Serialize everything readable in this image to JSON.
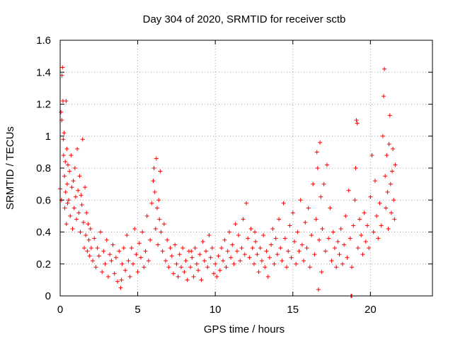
{
  "chart_data": {
    "type": "scatter",
    "title": "Day 304 of 2020, SRMTID for receiver sctb",
    "xlabel": "GPS time / hours",
    "ylabel": "SRMTID / TECUs",
    "xlim": [
      0,
      24
    ],
    "ylim": [
      0,
      1.6
    ],
    "xticks": [
      0,
      5,
      10,
      15,
      20
    ],
    "xtick_labels": [
      "0",
      "5",
      "10",
      "15",
      "20"
    ],
    "yticks": [
      0,
      0.2,
      0.4,
      0.6,
      0.8,
      1.0,
      1.2,
      1.4,
      1.6
    ],
    "ytick_labels": [
      "0",
      "0.2",
      "0.4",
      "0.6",
      "0.8",
      "1",
      "1.2",
      "1.4",
      "1.6"
    ],
    "grid": true,
    "marker": "+",
    "color": "#ff0000",
    "series": [
      {
        "name": "sctb",
        "points": [
          [
            0.0,
            0.67
          ],
          [
            0.05,
            1.15
          ],
          [
            0.08,
            0.6
          ],
          [
            0.1,
            1.1
          ],
          [
            0.12,
            1.38
          ],
          [
            0.15,
            1.43
          ],
          [
            0.18,
            1.22
          ],
          [
            0.2,
            0.98
          ],
          [
            0.22,
            0.88
          ],
          [
            0.25,
            1.02
          ],
          [
            0.28,
            0.75
          ],
          [
            0.3,
            0.55
          ],
          [
            0.33,
            0.84
          ],
          [
            0.35,
            0.65
          ],
          [
            0.38,
            1.22
          ],
          [
            0.4,
            0.45
          ],
          [
            0.43,
            0.92
          ],
          [
            0.45,
            0.7
          ],
          [
            0.48,
            0.58
          ],
          [
            0.5,
            0.82
          ],
          [
            0.55,
            0.6
          ],
          [
            0.6,
            0.78
          ],
          [
            0.65,
            0.5
          ],
          [
            0.7,
            0.88
          ],
          [
            0.75,
            0.68
          ],
          [
            0.8,
            0.42
          ],
          [
            0.85,
            0.72
          ],
          [
            0.9,
            0.55
          ],
          [
            0.95,
            0.8
          ],
          [
            1.0,
            0.62
          ],
          [
            1.05,
            0.48
          ],
          [
            1.1,
            0.92
          ],
          [
            1.15,
            0.66
          ],
          [
            1.2,
            0.52
          ],
          [
            1.25,
            0.75
          ],
          [
            1.3,
            0.4
          ],
          [
            1.35,
            0.63
          ],
          [
            1.4,
            0.57
          ],
          [
            1.45,
            0.98
          ],
          [
            1.5,
            0.46
          ],
          [
            1.55,
            0.3
          ],
          [
            1.6,
            0.68
          ],
          [
            1.65,
            0.38
          ],
          [
            1.7,
            0.52
          ],
          [
            1.75,
            0.28
          ],
          [
            1.8,
            0.45
          ],
          [
            1.85,
            0.35
          ],
          [
            1.9,
            0.25
          ],
          [
            1.95,
            0.42
          ],
          [
            2.0,
            0.3
          ],
          [
            2.1,
            0.22
          ],
          [
            2.2,
            0.36
          ],
          [
            2.3,
            0.18
          ],
          [
            2.4,
            0.3
          ],
          [
            2.5,
            0.25
          ],
          [
            2.6,
            0.4
          ],
          [
            2.7,
            0.15
          ],
          [
            2.8,
            0.28
          ],
          [
            2.9,
            0.2
          ],
          [
            3.0,
            0.35
          ],
          [
            3.1,
            0.12
          ],
          [
            3.2,
            0.26
          ],
          [
            3.3,
            0.22
          ],
          [
            3.4,
            0.32
          ],
          [
            3.5,
            0.14
          ],
          [
            3.6,
            0.24
          ],
          [
            3.7,
            0.09
          ],
          [
            3.8,
            0.28
          ],
          [
            3.9,
            0.05
          ],
          [
            4.0,
            0.2
          ],
          [
            4.1,
            0.3
          ],
          [
            4.2,
            0.16
          ],
          [
            4.3,
            0.38
          ],
          [
            4.4,
            0.22
          ],
          [
            4.5,
            0.12
          ],
          [
            4.6,
            0.3
          ],
          [
            4.7,
            0.2
          ],
          [
            4.8,
            0.42
          ],
          [
            4.9,
            0.26
          ],
          [
            5.0,
            0.15
          ],
          [
            5.1,
            0.33
          ],
          [
            5.2,
            0.24
          ],
          [
            5.3,
            0.4
          ],
          [
            5.4,
            0.18
          ],
          [
            5.5,
            0.28
          ],
          [
            5.6,
            0.5
          ],
          [
            5.7,
            0.22
          ],
          [
            5.8,
            0.35
          ],
          [
            5.9,
            0.58
          ],
          [
            6.0,
            0.72
          ],
          [
            6.05,
            0.8
          ],
          [
            6.1,
            0.65
          ],
          [
            6.15,
            0.42
          ],
          [
            6.2,
            0.86
          ],
          [
            6.25,
            0.55
          ],
          [
            6.3,
            0.32
          ],
          [
            6.35,
            0.6
          ],
          [
            6.4,
            0.48
          ],
          [
            6.45,
            0.78
          ],
          [
            6.5,
            0.4
          ],
          [
            6.6,
            0.28
          ],
          [
            6.7,
            0.45
          ],
          [
            6.8,
            0.22
          ],
          [
            6.9,
            0.35
          ],
          [
            7.0,
            0.18
          ],
          [
            7.1,
            0.3
          ],
          [
            7.2,
            0.25
          ],
          [
            7.3,
            0.14
          ],
          [
            7.4,
            0.32
          ],
          [
            7.5,
            0.2
          ],
          [
            7.6,
            0.12
          ],
          [
            7.7,
            0.26
          ],
          [
            7.8,
            0.18
          ],
          [
            7.9,
            0.3
          ],
          [
            8.0,
            0.15
          ],
          [
            8.1,
            0.22
          ],
          [
            8.2,
            0.1
          ],
          [
            8.3,
            0.28
          ],
          [
            8.4,
            0.18
          ],
          [
            8.5,
            0.24
          ],
          [
            8.6,
            0.12
          ],
          [
            8.7,
            0.3
          ],
          [
            8.8,
            0.2
          ],
          [
            8.9,
            0.16
          ],
          [
            9.0,
            0.26
          ],
          [
            9.1,
            0.1
          ],
          [
            9.2,
            0.34
          ],
          [
            9.3,
            0.22
          ],
          [
            9.4,
            0.28
          ],
          [
            9.5,
            0.18
          ],
          [
            9.6,
            0.38
          ],
          [
            9.7,
            0.24
          ],
          [
            9.8,
            0.3
          ],
          [
            9.9,
            0.14
          ],
          [
            10.0,
            0.2
          ],
          [
            10.1,
            0.12
          ],
          [
            10.2,
            0.25
          ],
          [
            10.3,
            0.16
          ],
          [
            10.4,
            0.3
          ],
          [
            10.5,
            0.22
          ],
          [
            10.6,
            0.35
          ],
          [
            10.7,
            0.18
          ],
          [
            10.8,
            0.28
          ],
          [
            10.9,
            0.4
          ],
          [
            11.0,
            0.24
          ],
          [
            11.1,
            0.32
          ],
          [
            11.2,
            0.2
          ],
          [
            11.3,
            0.45
          ],
          [
            11.4,
            0.28
          ],
          [
            11.5,
            0.38
          ],
          [
            11.6,
            0.22
          ],
          [
            11.7,
            0.3
          ],
          [
            11.8,
            0.48
          ],
          [
            11.9,
            0.26
          ],
          [
            12.0,
            0.58
          ],
          [
            12.1,
            0.36
          ],
          [
            12.2,
            0.24
          ],
          [
            12.3,
            0.42
          ],
          [
            12.4,
            0.3
          ],
          [
            12.5,
            0.2
          ],
          [
            12.6,
            0.34
          ],
          [
            12.7,
            0.26
          ],
          [
            12.8,
            0.15
          ],
          [
            12.9,
            0.3
          ],
          [
            13.0,
            0.22
          ],
          [
            13.1,
            0.38
          ],
          [
            13.2,
            0.18
          ],
          [
            13.3,
            0.28
          ],
          [
            13.4,
            0.12
          ],
          [
            13.5,
            0.24
          ],
          [
            13.6,
            0.32
          ],
          [
            13.7,
            0.42
          ],
          [
            13.8,
            0.2
          ],
          [
            13.9,
            0.36
          ],
          [
            14.0,
            0.26
          ],
          [
            14.1,
            0.48
          ],
          [
            14.2,
            0.3
          ],
          [
            14.3,
            0.22
          ],
          [
            14.4,
            0.58
          ],
          [
            14.5,
            0.36
          ],
          [
            14.6,
            0.18
          ],
          [
            14.7,
            0.28
          ],
          [
            14.8,
            0.44
          ],
          [
            14.9,
            0.24
          ],
          [
            15.0,
            0.52
          ],
          [
            15.1,
            0.34
          ],
          [
            15.2,
            0.2
          ],
          [
            15.3,
            0.4
          ],
          [
            15.4,
            0.28
          ],
          [
            15.5,
            0.6
          ],
          [
            15.6,
            0.32
          ],
          [
            15.7,
            0.22
          ],
          [
            15.8,
            0.46
          ],
          [
            15.9,
            0.3
          ],
          [
            16.0,
            0.55
          ],
          [
            16.1,
            0.18
          ],
          [
            16.2,
            0.38
          ],
          [
            16.3,
            0.7
          ],
          [
            16.4,
            0.26
          ],
          [
            16.5,
            0.48
          ],
          [
            16.55,
            0.9
          ],
          [
            16.6,
            0.8
          ],
          [
            16.65,
            0.04
          ],
          [
            16.7,
            0.35
          ],
          [
            16.75,
            0.96
          ],
          [
            16.8,
            0.62
          ],
          [
            16.85,
            0.15
          ],
          [
            16.9,
            0.42
          ],
          [
            17.0,
            0.7
          ],
          [
            17.1,
            0.28
          ],
          [
            17.2,
            0.82
          ],
          [
            17.3,
            0.36
          ],
          [
            17.4,
            0.55
          ],
          [
            17.5,
            0.22
          ],
          [
            17.6,
            0.4
          ],
          [
            17.7,
            0.3
          ],
          [
            17.8,
            0.18
          ],
          [
            17.9,
            0.34
          ],
          [
            18.0,
            0.26
          ],
          [
            18.1,
            0.42
          ],
          [
            18.2,
            0.2
          ],
          [
            18.3,
            0.32
          ],
          [
            18.4,
            0.5
          ],
          [
            18.5,
            0.24
          ],
          [
            18.6,
            0.66
          ],
          [
            18.7,
            0.36
          ],
          [
            18.8,
            0.18
          ],
          [
            18.9,
            0.44
          ],
          [
            19.0,
            0.6
          ],
          [
            19.05,
            0.8
          ],
          [
            19.1,
            1.1
          ],
          [
            19.15,
            1.08
          ],
          [
            19.2,
            0.3
          ],
          [
            19.3,
            0.48
          ],
          [
            19.4,
            0.38
          ],
          [
            19.5,
            0.26
          ],
          [
            19.6,
            0.52
          ],
          [
            19.7,
            0.34
          ],
          [
            19.8,
            0.44
          ],
          [
            19.9,
            0.3
          ],
          [
            20.0,
            0.62
          ],
          [
            20.1,
            0.88
          ],
          [
            20.2,
            0.4
          ],
          [
            20.3,
            0.72
          ],
          [
            20.4,
            0.5
          ],
          [
            20.5,
            0.36
          ],
          [
            20.6,
            0.58
          ],
          [
            20.7,
            0.44
          ],
          [
            20.8,
            1.0
          ],
          [
            20.85,
            1.25
          ],
          [
            20.9,
            1.42
          ],
          [
            20.95,
            0.75
          ],
          [
            21.0,
            0.55
          ],
          [
            21.05,
            0.88
          ],
          [
            21.1,
            0.65
          ],
          [
            21.15,
            0.42
          ],
          [
            21.2,
            0.95
          ],
          [
            21.25,
            1.13
          ],
          [
            21.3,
            0.7
          ],
          [
            21.35,
            0.52
          ],
          [
            21.4,
            0.78
          ],
          [
            21.45,
            0.92
          ],
          [
            21.5,
            0.6
          ],
          [
            21.55,
            0.48
          ],
          [
            21.6,
            0.82
          ],
          [
            18.75,
            0.0
          ],
          [
            18.8,
            0.0
          ],
          [
            3.95,
            0.1
          ],
          [
            8.45,
            0.28
          ],
          [
            12.55,
            0.4
          ]
        ]
      }
    ]
  }
}
